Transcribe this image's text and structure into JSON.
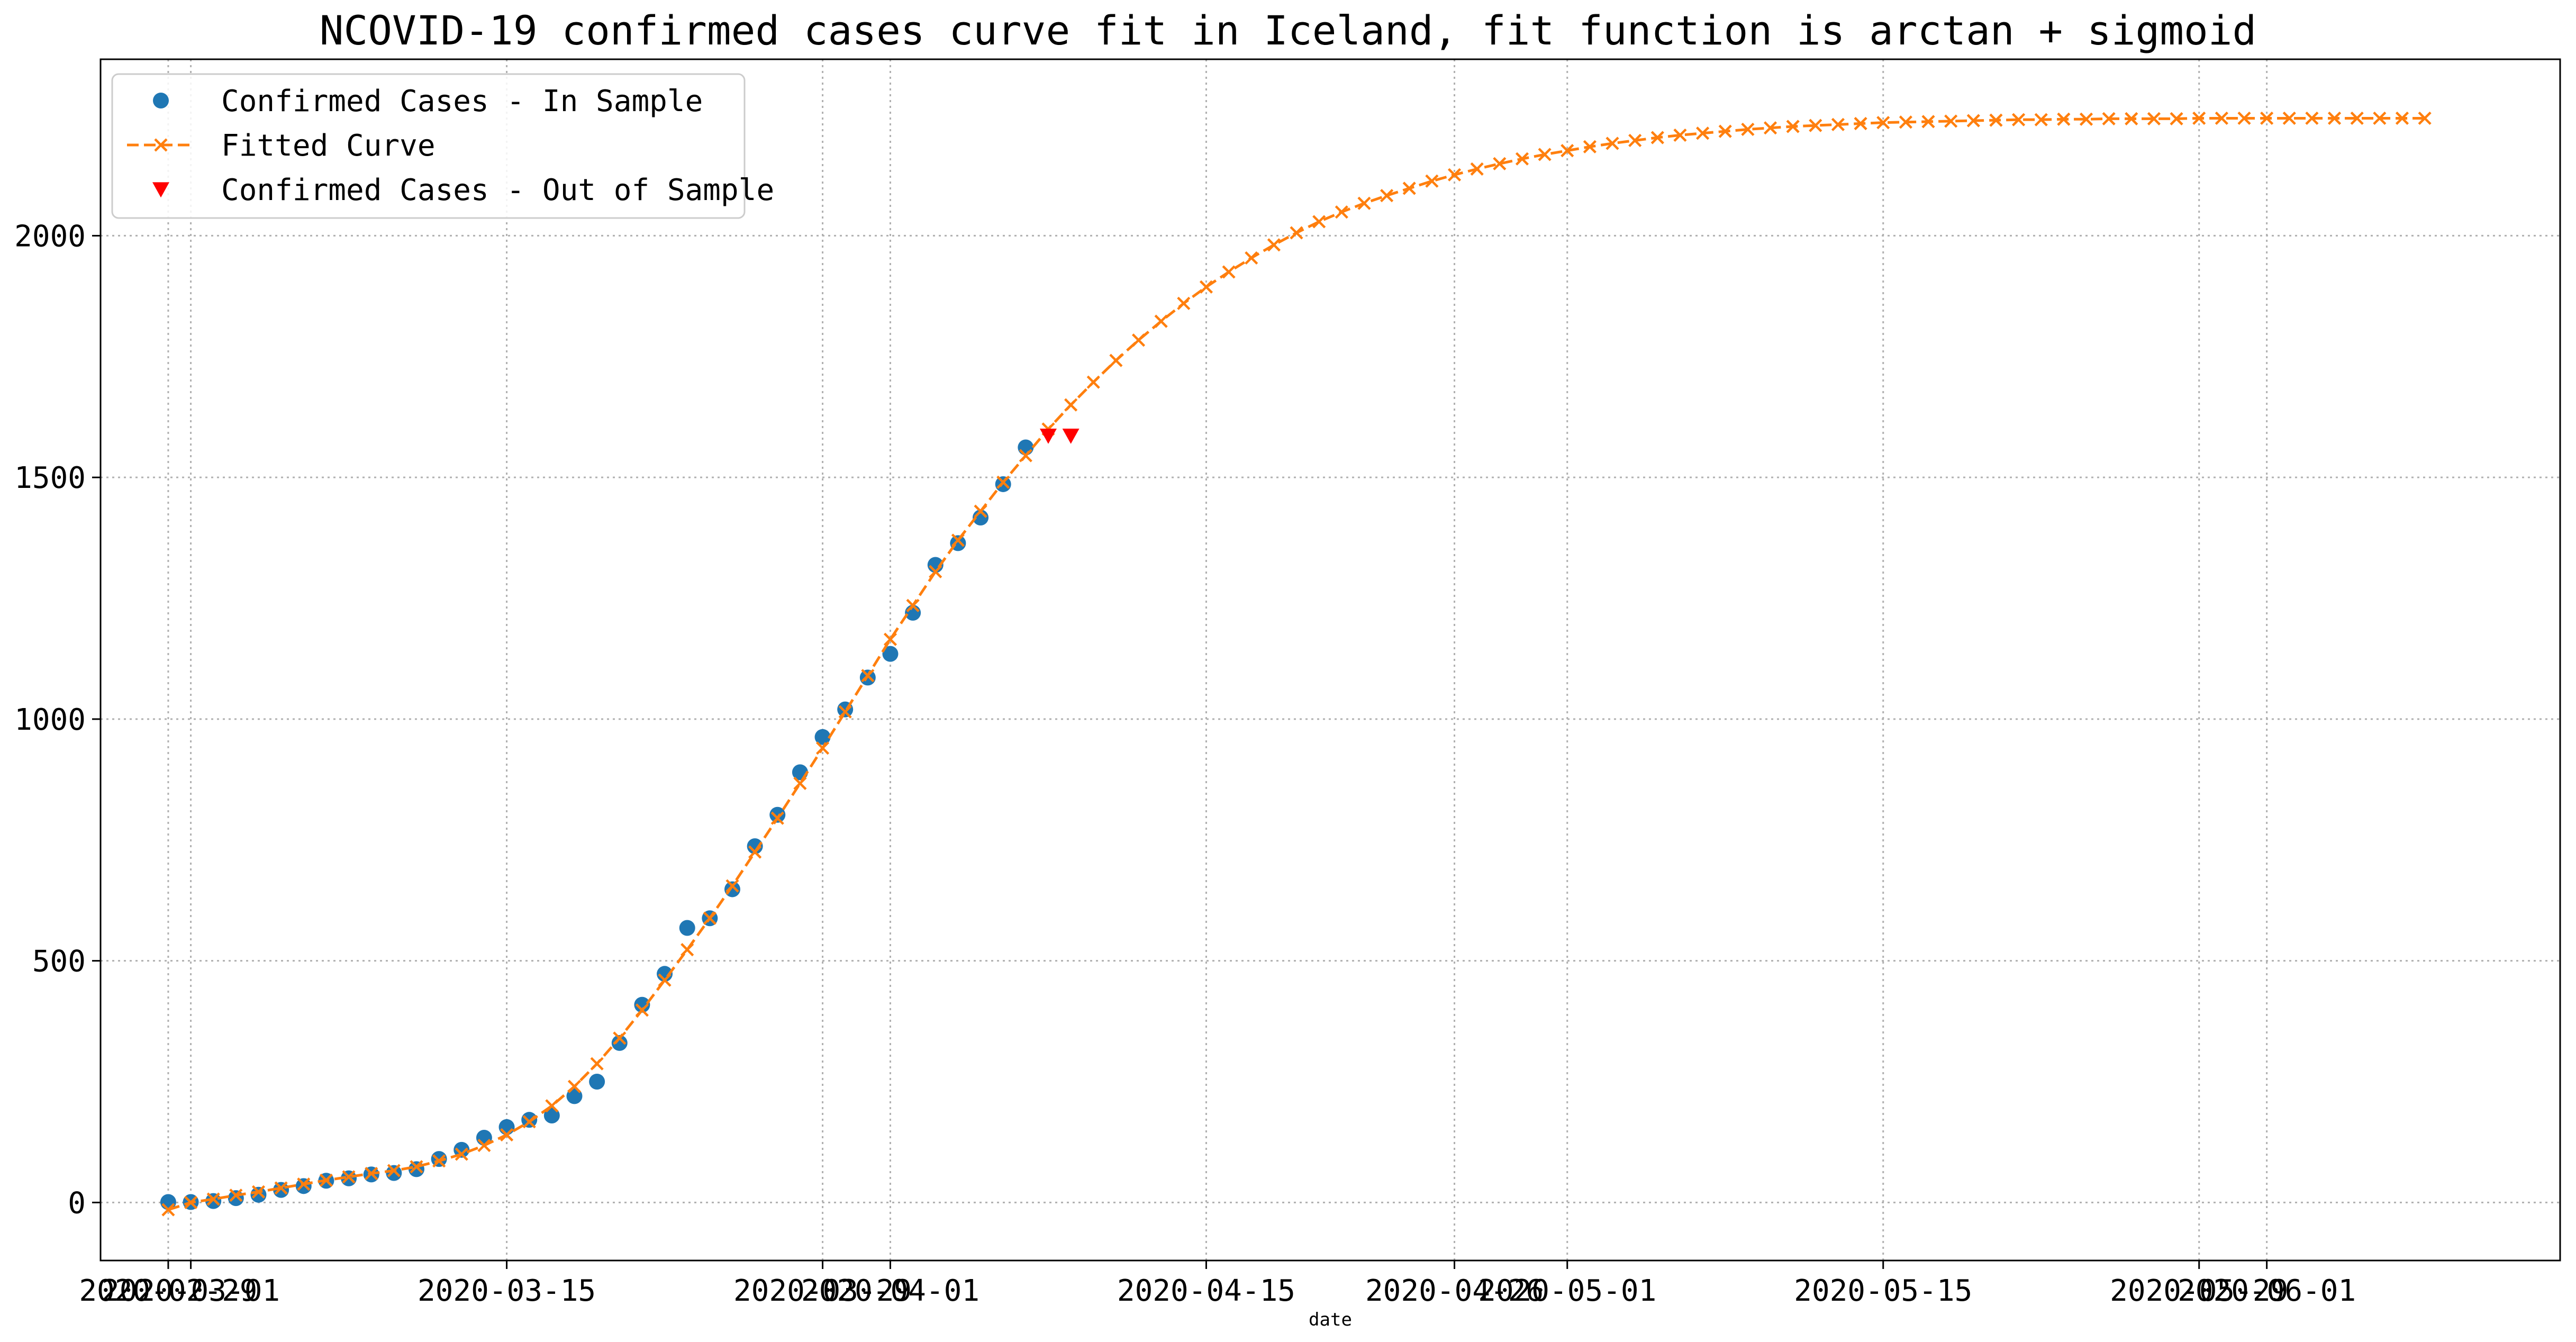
{
  "chart_data": {
    "type": "line",
    "title": "NCOVID-19 confirmed cases curve fit in Iceland, fit function is arctan + sigmoid",
    "xlabel": "date",
    "ylabel": "",
    "x_axis_type": "date",
    "xlim": [
      "2020-02-26",
      "2020-06-14"
    ],
    "ylim": [
      -120,
      2365
    ],
    "grid": true,
    "legend_position": "top-left",
    "x_ticks": [
      "2020-02-29",
      "2020-03-01",
      "2020-03-15",
      "2020-03-29",
      "2020-04-01",
      "2020-04-15",
      "2020-04-26",
      "2020-05-01",
      "2020-05-15",
      "2020-05-29",
      "2020-06-01"
    ],
    "x_tick_labels": [
      "2020-02-29",
      "2020-03-01",
      "2020-03-15",
      "2020-03-29",
      "2020-04-01",
      "2020-04-15",
      "2020-04-26",
      "2020-05-01",
      "2020-05-15",
      "2020-05-29",
      "2020-06-01"
    ],
    "y_ticks": [
      0,
      500,
      1000,
      1500,
      2000
    ],
    "y_tick_labels": [
      "0",
      "500",
      "1000",
      "1500",
      "2000"
    ],
    "colors": {
      "in_sample": "#1f77b4",
      "fitted": "#ff7f0e",
      "out_of_sample": "#ff0000",
      "grid": "#b0b0b0"
    },
    "legend": [
      {
        "key": "in_sample",
        "label": "Confirmed Cases - In Sample",
        "marker": "circle"
      },
      {
        "key": "fitted",
        "label": "Fitted Curve",
        "marker": "x-dashed"
      },
      {
        "key": "out_of_sample",
        "label": "Confirmed Cases - Out of Sample",
        "marker": "triangle-down"
      }
    ],
    "series": [
      {
        "key": "in_sample",
        "name": "Confirmed Cases - In Sample",
        "start_date": "2020-02-29",
        "values": [
          1,
          1,
          3,
          9,
          16,
          26,
          34,
          45,
          50,
          58,
          61,
          69,
          90,
          109,
          134,
          156,
          171,
          180,
          220,
          250,
          330,
          409,
          473,
          568,
          588,
          648,
          737,
          802,
          890,
          963,
          1020,
          1086,
          1135,
          1220,
          1319,
          1364,
          1417,
          1486,
          1562
        ]
      },
      {
        "key": "fitted",
        "name": "Fitted Curve",
        "start_date": "2020-02-29",
        "values": [
          -15,
          0,
          7,
          15,
          22,
          30,
          38,
          46,
          53,
          60,
          66,
          74,
          86,
          100,
          118,
          140,
          167,
          200,
          240,
          287,
          340,
          398,
          460,
          523,
          588,
          655,
          725,
          795,
          867,
          940,
          1015,
          1090,
          1165,
          1235,
          1305,
          1370,
          1430,
          1490,
          1545,
          1600,
          1650,
          1697,
          1742,
          1784,
          1823,
          1860,
          1894,
          1925,
          1954,
          1981,
          2006,
          2029,
          2049,
          2067,
          2083,
          2098,
          2113,
          2126,
          2138,
          2149,
          2159,
          2168,
          2176,
          2184,
          2191,
          2197,
          2203,
          2208,
          2212,
          2216,
          2220,
          2223,
          2226,
          2228,
          2230,
          2232,
          2234,
          2235,
          2236,
          2237,
          2238,
          2239,
          2240,
          2240,
          2241,
          2241,
          2242,
          2242,
          2242,
          2242,
          2243,
          2243,
          2243,
          2243,
          2243,
          2243,
          2243,
          2243,
          2243,
          2243,
          2243
        ]
      },
      {
        "key": "out_of_sample",
        "name": "Confirmed Cases - Out of Sample",
        "start_date": "2020-04-08",
        "values": [
          1586,
          1586
        ]
      }
    ]
  }
}
